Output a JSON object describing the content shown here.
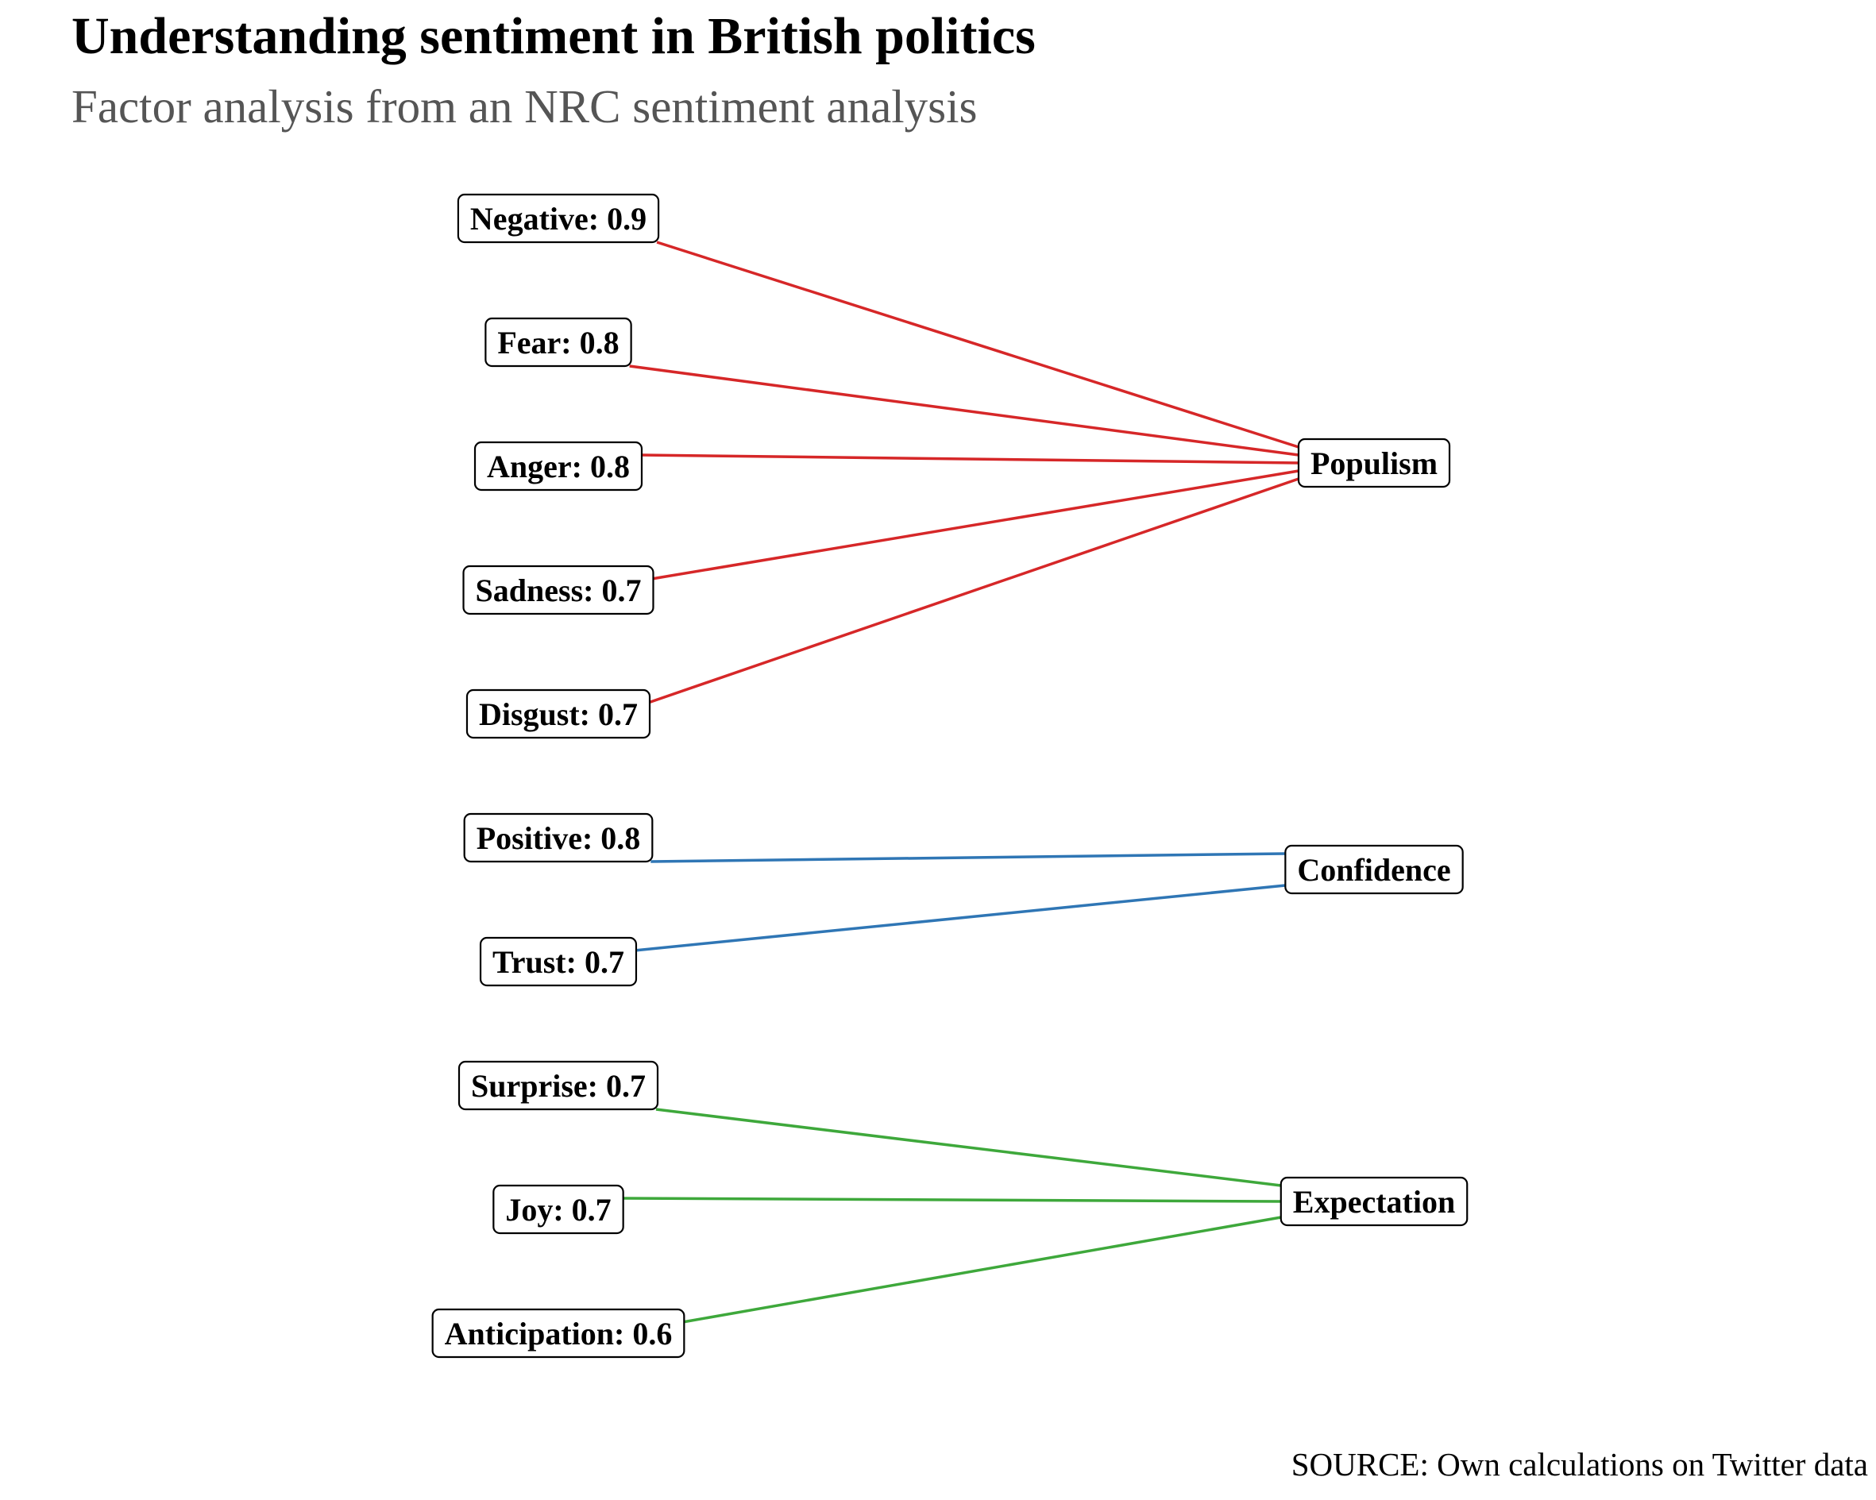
{
  "title": "Understanding sentiment in British politics",
  "subtitle": "Factor analysis from an NRC sentiment analysis",
  "caption": "SOURCE: Own calculations on Twitter data",
  "factors": [
    {
      "id": "populism",
      "label": "Populism",
      "color": "#d62728"
    },
    {
      "id": "confidence",
      "label": "Confidence",
      "color": "#2f76b5"
    },
    {
      "id": "expectation",
      "label": "Expectation",
      "color": "#3ea83b"
    }
  ],
  "items": [
    {
      "label": "Negative: 0.9",
      "loading": 0.9,
      "factor": "populism"
    },
    {
      "label": "Fear: 0.8",
      "loading": 0.8,
      "factor": "populism"
    },
    {
      "label": "Anger: 0.8",
      "loading": 0.8,
      "factor": "populism"
    },
    {
      "label": "Sadness: 0.7",
      "loading": 0.7,
      "factor": "populism"
    },
    {
      "label": "Disgust: 0.7",
      "loading": 0.7,
      "factor": "populism"
    },
    {
      "label": "Positive: 0.8",
      "loading": 0.8,
      "factor": "confidence"
    },
    {
      "label": "Trust: 0.7",
      "loading": 0.7,
      "factor": "confidence"
    },
    {
      "label": "Surprise: 0.7",
      "loading": 0.7,
      "factor": "expectation"
    },
    {
      "label": "Joy: 0.7",
      "loading": 0.7,
      "factor": "expectation"
    },
    {
      "label": "Anticipation: 0.6",
      "loading": 0.6,
      "factor": "expectation"
    }
  ]
}
